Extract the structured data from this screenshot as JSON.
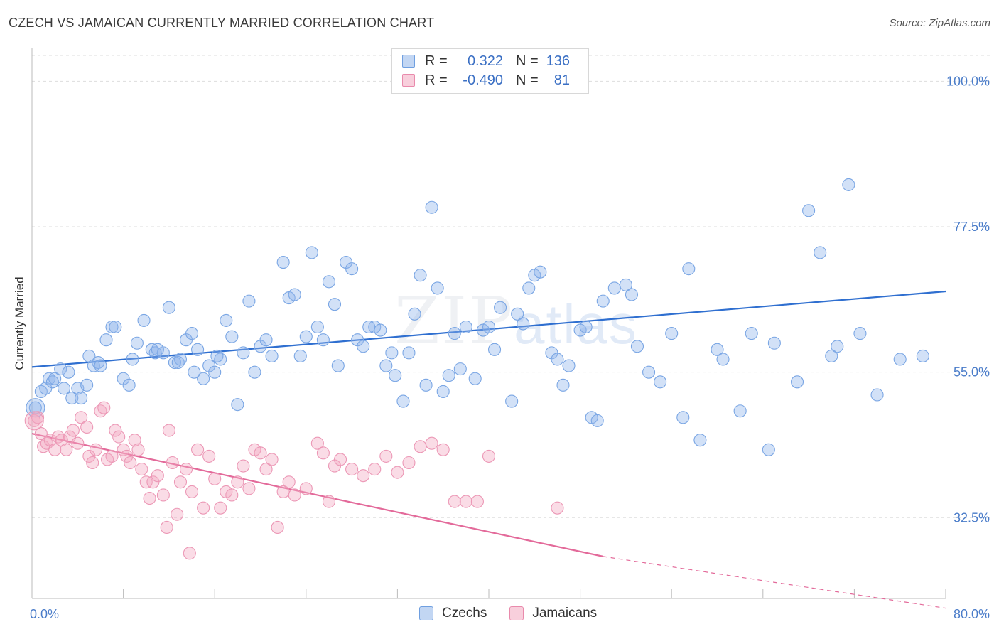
{
  "title": "CZECH VS JAMAICAN CURRENTLY MARRIED CORRELATION CHART",
  "source": "Source: ZipAtlas.com",
  "watermark": {
    "zip": "ZIP",
    "atlas": "atlas"
  },
  "legend": {
    "rows": [
      {
        "r_label": "R =",
        "r_value": "0.322",
        "n_label": "N =",
        "n_value": "136",
        "color": "#8fb4ea"
      },
      {
        "r_label": "R =",
        "r_value": "-0.490",
        "n_label": "N =",
        "n_value": "81",
        "color": "#f2a7c0"
      }
    ]
  },
  "bottom_legend": {
    "czechs": "Czechs",
    "jamaicans": "Jamaicans"
  },
  "chart_data": {
    "type": "scatter",
    "title": "CZECH VS JAMAICAN CURRENTLY MARRIED CORRELATION CHART",
    "xlabel": "",
    "ylabel": "Currently Married",
    "xlim": [
      0,
      80
    ],
    "ylim": [
      20,
      104
    ],
    "x_tick_labels": [
      "0.0%",
      "80.0%"
    ],
    "y_ticks": [
      32.5,
      55.0,
      77.5,
      100.0
    ],
    "y_tick_labels": [
      "32.5%",
      "55.0%",
      "77.5%",
      "100.0%"
    ],
    "grid": true,
    "legend_position": "top-center",
    "series": [
      {
        "name": "Czechs",
        "color": "#8fb4ea",
        "line_color": "#2f6fd0",
        "trend": {
          "x": [
            0,
            80
          ],
          "y": [
            55.8,
            67.5
          ]
        },
        "points": [
          [
            0.3,
            49.5
          ],
          [
            0.8,
            52
          ],
          [
            1.2,
            52.5
          ],
          [
            1.5,
            54
          ],
          [
            1.8,
            53.5
          ],
          [
            2.0,
            54
          ],
          [
            2.5,
            55.5
          ],
          [
            2.8,
            52.5
          ],
          [
            3.2,
            55
          ],
          [
            3.5,
            51
          ],
          [
            4.0,
            52.5
          ],
          [
            4.3,
            51
          ],
          [
            4.8,
            53
          ],
          [
            5.0,
            57.5
          ],
          [
            5.4,
            56
          ],
          [
            5.8,
            56.5
          ],
          [
            6.0,
            56
          ],
          [
            6.5,
            60
          ],
          [
            7.0,
            62
          ],
          [
            7.3,
            62
          ],
          [
            8.0,
            54
          ],
          [
            8.5,
            53
          ],
          [
            8.8,
            57
          ],
          [
            9.2,
            59.5
          ],
          [
            9.8,
            63
          ],
          [
            10.5,
            58.5
          ],
          [
            10.8,
            58
          ],
          [
            11.5,
            58
          ],
          [
            12.0,
            65
          ],
          [
            12.5,
            56.5
          ],
          [
            13.0,
            57
          ],
          [
            13.5,
            60
          ],
          [
            14.0,
            61
          ],
          [
            14.5,
            58.5
          ],
          [
            15.0,
            54
          ],
          [
            15.5,
            56
          ],
          [
            16.0,
            55
          ],
          [
            16.5,
            57
          ],
          [
            17.0,
            63
          ],
          [
            17.5,
            60.5
          ],
          [
            18.0,
            50
          ],
          [
            18.5,
            58
          ],
          [
            19.0,
            66
          ],
          [
            19.5,
            55
          ],
          [
            20.0,
            59
          ],
          [
            21.0,
            57.5
          ],
          [
            22.0,
            72
          ],
          [
            22.5,
            66.5
          ],
          [
            23.0,
            67
          ],
          [
            23.5,
            57.5
          ],
          [
            24.5,
            73.5
          ],
          [
            25.0,
            62
          ],
          [
            25.5,
            60
          ],
          [
            26.0,
            69
          ],
          [
            26.5,
            65.5
          ],
          [
            27.5,
            72
          ],
          [
            28.0,
            71
          ],
          [
            28.5,
            60
          ],
          [
            29.0,
            59
          ],
          [
            30.0,
            62
          ],
          [
            30.5,
            61.5
          ],
          [
            31.0,
            56
          ],
          [
            31.5,
            58
          ],
          [
            32.5,
            50.5
          ],
          [
            33.0,
            58
          ],
          [
            34.0,
            70
          ],
          [
            33.5,
            64
          ],
          [
            35.0,
            80.5
          ],
          [
            35.5,
            68
          ],
          [
            36.5,
            54.5
          ],
          [
            37.0,
            61
          ],
          [
            37.5,
            55.5
          ],
          [
            38.0,
            62
          ],
          [
            39.5,
            61.5
          ],
          [
            40.5,
            58.5
          ],
          [
            42.0,
            50.5
          ],
          [
            42.5,
            64
          ],
          [
            43.0,
            62.5
          ],
          [
            44.0,
            70
          ],
          [
            44.5,
            70.5
          ],
          [
            45.5,
            58
          ],
          [
            46.5,
            53
          ],
          [
            48.0,
            61.5
          ],
          [
            48.5,
            62
          ],
          [
            49.0,
            48
          ],
          [
            49.5,
            47.5
          ],
          [
            50.0,
            66
          ],
          [
            51.0,
            68
          ],
          [
            52.0,
            68.5
          ],
          [
            52.5,
            67
          ],
          [
            54.0,
            55
          ],
          [
            56.0,
            61
          ],
          [
            57.0,
            48
          ],
          [
            58.5,
            44.5
          ],
          [
            60.0,
            58.5
          ],
          [
            60.5,
            57
          ],
          [
            62.0,
            49
          ],
          [
            63.0,
            61
          ],
          [
            64.5,
            43
          ],
          [
            65.0,
            59.5
          ],
          [
            67.0,
            53.5
          ],
          [
            68.0,
            80
          ],
          [
            69.0,
            73.5
          ],
          [
            70.0,
            57.5
          ],
          [
            70.5,
            59
          ],
          [
            71.5,
            84
          ],
          [
            72.5,
            61
          ],
          [
            74.0,
            51.5
          ],
          [
            76.0,
            57
          ],
          [
            78.0,
            57.5
          ],
          [
            11.0,
            58.5
          ],
          [
            12.8,
            56.5
          ],
          [
            14.2,
            55
          ],
          [
            16.2,
            57.5
          ],
          [
            20.5,
            60
          ],
          [
            24.0,
            60.5
          ],
          [
            26.8,
            56
          ],
          [
            29.5,
            62
          ],
          [
            31.8,
            54.5
          ],
          [
            34.5,
            53
          ],
          [
            36.0,
            52
          ],
          [
            38.8,
            54
          ],
          [
            40.0,
            62
          ],
          [
            41.0,
            65
          ],
          [
            43.5,
            68
          ],
          [
            46.0,
            57
          ],
          [
            47.0,
            56
          ],
          [
            53.0,
            59
          ],
          [
            55.0,
            53.5
          ],
          [
            57.5,
            71
          ]
        ]
      },
      {
        "name": "Jamaicans",
        "color": "#f2a7c0",
        "line_color": "#e36a9a",
        "trend": {
          "x": [
            0,
            50
          ],
          "y": [
            45.5,
            26.5
          ]
        },
        "trend_dashed": {
          "x": [
            50,
            80
          ],
          "y": [
            26.5,
            18.5
          ]
        },
        "points": [
          [
            0.2,
            47.5
          ],
          [
            0.5,
            48
          ],
          [
            0.8,
            45.5
          ],
          [
            1.0,
            43.5
          ],
          [
            1.3,
            44
          ],
          [
            1.6,
            44.5
          ],
          [
            2.0,
            43
          ],
          [
            2.3,
            45
          ],
          [
            2.6,
            44.5
          ],
          [
            3.0,
            43
          ],
          [
            3.3,
            45
          ],
          [
            3.6,
            46
          ],
          [
            4.0,
            44
          ],
          [
            4.3,
            48
          ],
          [
            4.8,
            46.5
          ],
          [
            5.0,
            42
          ],
          [
            5.3,
            41
          ],
          [
            5.6,
            43
          ],
          [
            6.0,
            49
          ],
          [
            6.3,
            49.5
          ],
          [
            6.6,
            41.5
          ],
          [
            7.0,
            42
          ],
          [
            7.3,
            46
          ],
          [
            7.6,
            45
          ],
          [
            8.0,
            43
          ],
          [
            8.3,
            42
          ],
          [
            8.6,
            41
          ],
          [
            9.0,
            44.5
          ],
          [
            9.3,
            43
          ],
          [
            9.6,
            40
          ],
          [
            10.0,
            38
          ],
          [
            10.3,
            35.5
          ],
          [
            10.6,
            38
          ],
          [
            11.0,
            39
          ],
          [
            11.5,
            36
          ],
          [
            12.0,
            46
          ],
          [
            12.3,
            41
          ],
          [
            12.7,
            33
          ],
          [
            13.0,
            38
          ],
          [
            13.5,
            40
          ],
          [
            14.0,
            36.5
          ],
          [
            14.5,
            43
          ],
          [
            15.0,
            34
          ],
          [
            15.5,
            42
          ],
          [
            16.0,
            38.5
          ],
          [
            16.5,
            34
          ],
          [
            17.0,
            36.5
          ],
          [
            17.5,
            36
          ],
          [
            18.0,
            38
          ],
          [
            18.5,
            40.5
          ],
          [
            19.0,
            37
          ],
          [
            19.5,
            43
          ],
          [
            20.0,
            42.5
          ],
          [
            20.5,
            40
          ],
          [
            21.0,
            41.5
          ],
          [
            21.5,
            31
          ],
          [
            22.0,
            36.5
          ],
          [
            22.5,
            38
          ],
          [
            23.0,
            36
          ],
          [
            24.0,
            37
          ],
          [
            25.0,
            44
          ],
          [
            25.5,
            42.5
          ],
          [
            26.0,
            35
          ],
          [
            26.5,
            40.5
          ],
          [
            27.0,
            41.5
          ],
          [
            28.0,
            40
          ],
          [
            29.0,
            39
          ],
          [
            30.0,
            40
          ],
          [
            31.0,
            42
          ],
          [
            32.0,
            39.5
          ],
          [
            33.0,
            41
          ],
          [
            34.0,
            43.5
          ],
          [
            35.0,
            44
          ],
          [
            36.0,
            43
          ],
          [
            37.0,
            35
          ],
          [
            38.0,
            35
          ],
          [
            39.0,
            35
          ],
          [
            40.0,
            42
          ],
          [
            11.8,
            31
          ],
          [
            13.8,
            27
          ],
          [
            46.0,
            34
          ]
        ]
      }
    ]
  }
}
